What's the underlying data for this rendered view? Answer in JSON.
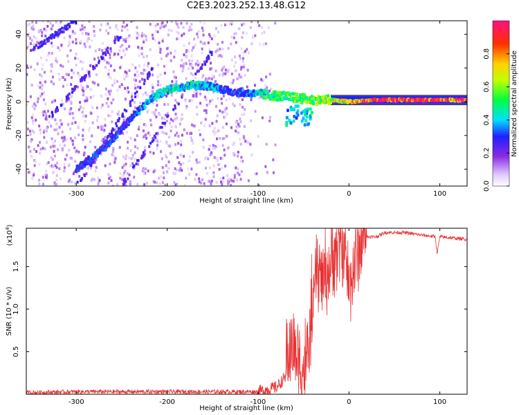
{
  "title": "C2E3.2023.252.13.48.G12",
  "chart_data": [
    {
      "type": "heatmap",
      "xlabel": "Height of straight line (km)",
      "ylabel": "Frequency (Hz)",
      "xlim": [
        -355,
        130
      ],
      "ylim": [
        -50,
        48
      ],
      "x_ticks": [
        -300,
        -200,
        -100,
        0,
        100
      ],
      "y_ticks": [
        -40,
        -20,
        0,
        20,
        40
      ],
      "colorbar": {
        "label": "Normalized spectral amplitude",
        "ticks": [
          0.0,
          0.2,
          0.4,
          0.6,
          0.8
        ],
        "range": [
          0,
          1
        ]
      },
      "ridge": {
        "description_points_x": [
          -300,
          -270,
          -240,
          -215,
          -195,
          -170,
          -150,
          -130,
          -110,
          -90,
          -70,
          -55,
          -40,
          -20,
          0,
          30,
          60,
          90,
          130
        ],
        "description_points_y": [
          -40,
          -28,
          -10,
          3,
          8,
          10,
          9,
          6,
          5,
          4,
          3,
          2,
          1,
          1,
          0,
          1,
          1,
          1,
          1
        ],
        "amplitude": [
          0.3,
          0.3,
          0.3,
          0.4,
          0.45,
          0.45,
          0.4,
          0.3,
          0.35,
          0.5,
          0.55,
          0.6,
          0.6,
          0.65,
          0.75,
          0.9,
          0.95,
          0.9,
          0.85
        ]
      }
    },
    {
      "type": "line",
      "xlabel": "Height of straight line (km)",
      "ylabel": "SNR (10 * v/v)",
      "y_scale_label": "(x10",
      "y_scale_exp": "4",
      "y_scale_close": ")",
      "xlim": [
        -355,
        130
      ],
      "ylim": [
        0,
        1.95
      ],
      "x_ticks": [
        -300,
        -200,
        -100,
        0,
        100
      ],
      "y_ticks": [
        0.5,
        1.0,
        1.5
      ],
      "series": [
        {
          "color": "#e83030",
          "x": [
            -355,
            -300,
            -200,
            -100,
            -80,
            -70,
            -62,
            -55,
            -50,
            -45,
            -40,
            -35,
            -30,
            -25,
            -20,
            -15,
            -10,
            -5,
            0,
            10,
            20,
            30,
            40,
            60,
            80,
            95,
            97,
            100,
            120,
            130
          ],
          "y": [
            0.02,
            0.03,
            0.03,
            0.03,
            0.08,
            0.2,
            0.4,
            0.25,
            0.08,
            0.3,
            0.9,
            1.3,
            1.2,
            1.25,
            1.35,
            1.45,
            1.55,
            1.6,
            1.1,
            1.5,
            1.85,
            1.85,
            1.9,
            1.9,
            1.87,
            1.85,
            1.65,
            1.85,
            1.83,
            1.82
          ]
        }
      ]
    }
  ]
}
